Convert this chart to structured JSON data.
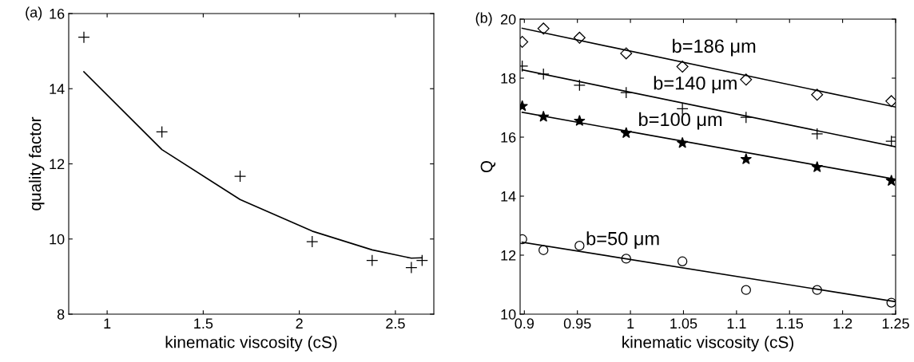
{
  "chart_data": [
    {
      "type": "scatter",
      "xlabel": "kinematic viscosity (cS)",
      "ylabel": "quality factor",
      "annotations": [
        "(a)"
      ],
      "xlim": [
        0.8,
        2.7
      ],
      "xticks": [
        1,
        1.5,
        2,
        2.5
      ],
      "ylim": [
        8,
        16
      ],
      "yticks": [
        8,
        10,
        12,
        14,
        16
      ],
      "grid": false,
      "legend": false,
      "series": [
        {
          "marker": "cross",
          "color": "#000000",
          "x": [
            0.879,
            1.285,
            1.692,
            2.067,
            2.379,
            2.583,
            2.639
          ],
          "values": [
            15.37,
            12.85,
            11.67,
            9.93,
            9.43,
            9.24,
            9.43
          ]
        },
        {
          "type": "line",
          "marker": "none",
          "color": "#000000",
          "x": [
            0.879,
            1.285,
            1.692,
            2.067,
            2.379,
            2.583,
            2.639
          ],
          "values": [
            14.45,
            12.38,
            11.05,
            10.21,
            9.71,
            9.49,
            9.5
          ]
        }
      ]
    },
    {
      "type": "scatter",
      "xlabel": "kinematic viscosity (cS)",
      "ylabel": "Q",
      "annotations": [
        "(b)"
      ],
      "xlim": [
        0.896,
        1.25
      ],
      "xticks": [
        0.9,
        0.95,
        1,
        1.05,
        1.1,
        1.15,
        1.2,
        1.25
      ],
      "ylim": [
        10,
        20
      ],
      "yticks": [
        10,
        12,
        14,
        16,
        18,
        20
      ],
      "grid": false,
      "x": [
        0.898,
        0.918,
        0.952,
        0.996,
        1.049,
        1.109,
        1.176,
        1.246
      ],
      "series": [
        {
          "marker": "diamond",
          "color": "#000000",
          "values": [
            19.23,
            19.68,
            19.37,
            18.84,
            18.39,
            17.95,
            17.44,
            17.22
          ]
        },
        {
          "marker": "cross",
          "color": "#000000",
          "values": [
            18.41,
            18.14,
            17.76,
            17.51,
            16.96,
            16.67,
            16.11,
            15.86
          ]
        },
        {
          "marker": "star",
          "color": "#000000",
          "values": [
            17.05,
            16.69,
            16.55,
            16.14,
            15.8,
            15.25,
            14.98,
            14.52
          ]
        },
        {
          "marker": "circle",
          "color": "#000000",
          "values": [
            12.54,
            12.17,
            12.32,
            11.88,
            11.79,
            10.82,
            10.82,
            10.39
          ]
        },
        {
          "type": "line",
          "name": "b=186 μm",
          "marker": "none",
          "color": "#000000",
          "x": [
            0.898,
            1.25
          ],
          "values": [
            19.69,
            17.02
          ]
        },
        {
          "type": "line",
          "name": "b=140 μm",
          "marker": "none",
          "color": "#000000",
          "x": [
            0.898,
            1.25
          ],
          "values": [
            18.28,
            15.67
          ]
        },
        {
          "type": "line",
          "name": "b=100 μm",
          "marker": "none",
          "color": "#000000",
          "x": [
            0.898,
            1.25
          ],
          "values": [
            16.84,
            14.57
          ]
        },
        {
          "type": "line",
          "name": "b=50 μm",
          "marker": "none",
          "color": "#000000",
          "x": [
            0.898,
            1.25
          ],
          "values": [
            12.44,
            10.42
          ]
        }
      ]
    }
  ]
}
